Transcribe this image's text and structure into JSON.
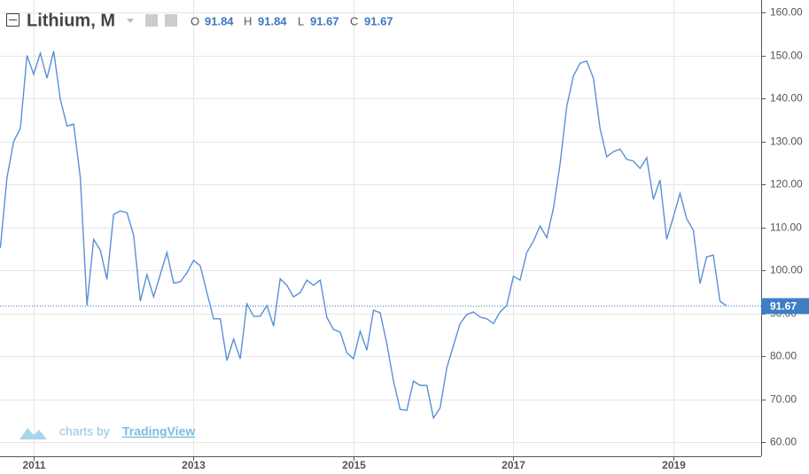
{
  "chart_data": {
    "type": "line",
    "title": "Lithium, M",
    "ohlc": {
      "o_label": "O",
      "o": "91.84",
      "h_label": "H",
      "h": "91.84",
      "l_label": "L",
      "l": "91.67",
      "c_label": "C",
      "c": "91.67"
    },
    "credit": {
      "text": "charts by",
      "link": "TradingView"
    },
    "categories": [
      null,
      null,
      null,
      null,
      null,
      "2011",
      null,
      null,
      null,
      null,
      null,
      null,
      null,
      null,
      null,
      null,
      null,
      null,
      null,
      null,
      null,
      null,
      null,
      null,
      null,
      null,
      null,
      null,
      null,
      "2013",
      null,
      null,
      null,
      null,
      null,
      null,
      null,
      null,
      null,
      null,
      null,
      null,
      null,
      null,
      null,
      null,
      null,
      null,
      null,
      null,
      null,
      null,
      null,
      "2015",
      null,
      null,
      null,
      null,
      null,
      null,
      null,
      null,
      null,
      null,
      null,
      null,
      null,
      null,
      null,
      null,
      null,
      null,
      null,
      null,
      null,
      null,
      null,
      "2017",
      null,
      null,
      null,
      null,
      null,
      null,
      null,
      null,
      null,
      null,
      null,
      null,
      null,
      null,
      null,
      null,
      null,
      null,
      null,
      null,
      null,
      null,
      null,
      "2019",
      null,
      null,
      null,
      null,
      null,
      null,
      null,
      null
    ],
    "values": [
      105.2,
      121.6,
      130,
      133,
      150,
      145.6,
      150.5,
      144.7,
      151,
      139.8,
      133.6,
      134,
      121.6,
      91.8,
      107.2,
      104.7,
      97.9,
      113,
      113.8,
      113.4,
      108.2,
      92.8,
      99,
      93.8,
      99,
      104.1,
      97,
      97.3,
      99.4,
      102.3,
      101,
      94.8,
      88.7,
      88.7,
      79,
      84,
      79.4,
      92.2,
      89.3,
      89.3,
      91.8,
      87,
      98,
      96.5,
      93.8,
      94.8,
      97.7,
      96.5,
      97.7,
      89,
      86.2,
      85.6,
      80.8,
      79.4,
      85.8,
      81.4,
      90.7,
      90.1,
      82.9,
      74.2,
      67.6,
      67.4,
      74.2,
      73.2,
      73.2,
      65.6,
      68,
      77.3,
      82.5,
      87.6,
      89.7,
      90.3,
      89.1,
      88.7,
      87.6,
      90.3,
      91.8,
      98.6,
      97.7,
      104.1,
      106.8,
      110.3,
      107.6,
      114.4,
      124.7,
      138.1,
      145.2,
      148.2,
      148.7,
      144.7,
      133,
      126.4,
      127.6,
      128.2,
      125.8,
      125.4,
      123.7,
      126.2,
      116.5,
      121,
      107.2,
      112.4,
      117.9,
      112,
      109.3,
      96.9,
      103.1,
      103.5,
      92.8,
      91.67
    ],
    "color": "#5b8fd6",
    "last_color": "#3d7ec4",
    "ylim": [
      56.7,
      162.9
    ],
    "yticks": [
      {
        "value": 60,
        "label": "60.00"
      },
      {
        "value": 70,
        "label": "70.00"
      },
      {
        "value": 80,
        "label": "80.00"
      },
      {
        "value": 90,
        "label": "90.00"
      },
      {
        "value": 100,
        "label": "100.00"
      },
      {
        "value": 110,
        "label": "110.00"
      },
      {
        "value": 120,
        "label": "120.00"
      },
      {
        "value": 130,
        "label": "130.00"
      },
      {
        "value": 140,
        "label": "140.00"
      },
      {
        "value": 150,
        "label": "150.00"
      },
      {
        "value": 160,
        "label": "160.00"
      }
    ],
    "grid": true
  }
}
